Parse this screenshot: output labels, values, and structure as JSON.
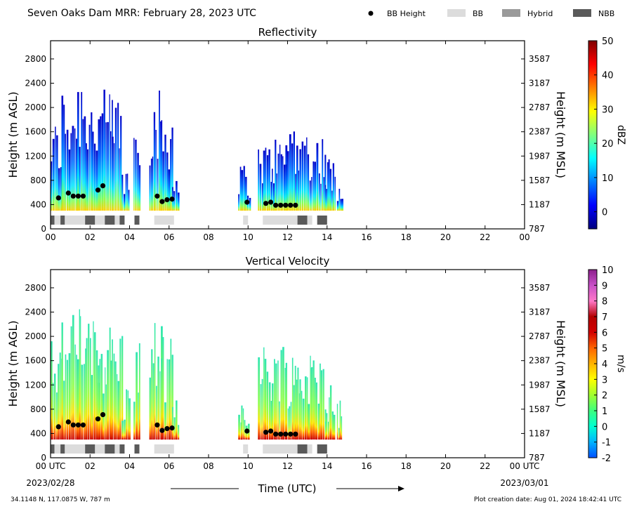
{
  "header": {
    "title": "Seven Oaks Dam MRR:  February 28, 2023 UTC",
    "legend": [
      {
        "label": "BB Height",
        "color": "#000000",
        "marker": "dot"
      },
      {
        "label": "BB",
        "color": "#dcdcdc",
        "marker": "rect"
      },
      {
        "label": "Hybrid",
        "color": "#9a9a9a",
        "marker": "rect"
      },
      {
        "label": "NBB",
        "color": "#5a5a5a",
        "marker": "rect"
      }
    ]
  },
  "footer": {
    "location": "34.1148 N, 117.0875 W, 787 m",
    "creation": "Plot creation date: Aug 01, 2024 18:42:41 UTC",
    "date_start": "2023/02/28",
    "date_end": "2023/03/01",
    "xlabel": "Time (UTC)"
  },
  "chart_data": [
    {
      "type": "heatmap",
      "title": "Reflectivity",
      "ylabel": "Height (m AGL)",
      "ylabel_right": "Height (m MSL)",
      "xlim": [
        0,
        24
      ],
      "ylim": [
        0,
        3100
      ],
      "xticks": [
        "00",
        "02",
        "04",
        "06",
        "08",
        "10",
        "12",
        "14",
        "16",
        "18",
        "20",
        "22",
        "00"
      ],
      "yticks": [
        0,
        400,
        800,
        1200,
        1600,
        2000,
        2400,
        2800
      ],
      "yticks_right": [
        "787",
        "1187",
        "1587",
        "1987",
        "2387",
        "2787",
        "3187",
        "3587"
      ],
      "colorbar": {
        "label": "dBZ",
        "ticks": [
          0,
          10,
          20,
          30,
          40,
          50
        ],
        "range": [
          -5,
          50
        ],
        "colors": [
          "#00007f",
          "#0000ff",
          "#007fff",
          "#00ffff",
          "#7fff7f",
          "#ffff00",
          "#ff7f00",
          "#ff0000",
          "#7f0000"
        ]
      },
      "echo_segments": [
        {
          "start": 0.0,
          "end": 0.55,
          "top": 1800
        },
        {
          "start": 0.55,
          "end": 1.35,
          "top": 2400
        },
        {
          "start": 1.35,
          "end": 1.8,
          "top": 2700
        },
        {
          "start": 1.8,
          "end": 2.4,
          "top": 2300
        },
        {
          "start": 2.4,
          "end": 3.1,
          "top": 2300
        },
        {
          "start": 3.1,
          "end": 3.6,
          "top": 2250
        },
        {
          "start": 3.6,
          "end": 4.0,
          "top": 1100
        },
        {
          "start": 4.2,
          "end": 4.5,
          "top": 2000
        },
        {
          "start": 5.0,
          "end": 5.6,
          "top": 2300
        },
        {
          "start": 5.6,
          "end": 6.15,
          "top": 2100
        },
        {
          "start": 6.15,
          "end": 6.5,
          "top": 1000
        },
        {
          "start": 8.75,
          "end": 8.85,
          "top": 300
        },
        {
          "start": 9.5,
          "end": 9.65,
          "top": 1050
        },
        {
          "start": 9.65,
          "end": 10.1,
          "top": 1100
        },
        {
          "start": 10.5,
          "end": 11.2,
          "top": 1450
        },
        {
          "start": 11.2,
          "end": 11.9,
          "top": 1550
        },
        {
          "start": 11.9,
          "end": 12.6,
          "top": 1900
        },
        {
          "start": 12.6,
          "end": 13.2,
          "top": 1700
        },
        {
          "start": 13.2,
          "end": 13.9,
          "top": 1600
        },
        {
          "start": 13.9,
          "end": 14.4,
          "top": 1200
        },
        {
          "start": 14.5,
          "end": 14.75,
          "top": 1000
        }
      ],
      "bb_height": [
        {
          "t": 0.4,
          "h": 510
        },
        {
          "t": 0.9,
          "h": 590
        },
        {
          "t": 1.15,
          "h": 540
        },
        {
          "t": 1.4,
          "h": 540
        },
        {
          "t": 1.65,
          "h": 540
        },
        {
          "t": 2.4,
          "h": 640
        },
        {
          "t": 2.65,
          "h": 710
        },
        {
          "t": 5.4,
          "h": 540
        },
        {
          "t": 5.65,
          "h": 450
        },
        {
          "t": 5.9,
          "h": 480
        },
        {
          "t": 6.15,
          "h": 490
        },
        {
          "t": 9.95,
          "h": 440
        },
        {
          "t": 10.9,
          "h": 420
        },
        {
          "t": 11.15,
          "h": 440
        },
        {
          "t": 11.4,
          "h": 390
        },
        {
          "t": 11.65,
          "h": 390
        },
        {
          "t": 11.9,
          "h": 390
        },
        {
          "t": 12.15,
          "h": 390
        },
        {
          "t": 12.4,
          "h": 390
        }
      ],
      "bb_type": [
        {
          "start": 0.0,
          "end": 0.2,
          "kind": "NBB"
        },
        {
          "start": 0.2,
          "end": 0.5,
          "kind": "BB"
        },
        {
          "start": 0.5,
          "end": 0.72,
          "kind": "NBB"
        },
        {
          "start": 0.72,
          "end": 1.75,
          "kind": "BB"
        },
        {
          "start": 1.75,
          "end": 2.25,
          "kind": "NBB"
        },
        {
          "start": 2.25,
          "end": 2.75,
          "kind": "BB"
        },
        {
          "start": 2.75,
          "end": 3.25,
          "kind": "NBB"
        },
        {
          "start": 3.25,
          "end": 3.5,
          "kind": "BB"
        },
        {
          "start": 3.5,
          "end": 3.75,
          "kind": "NBB"
        },
        {
          "start": 4.25,
          "end": 4.5,
          "kind": "NBB"
        },
        {
          "start": 5.25,
          "end": 6.25,
          "kind": "BB"
        },
        {
          "start": 9.75,
          "end": 10.0,
          "kind": "BB"
        },
        {
          "start": 10.75,
          "end": 12.5,
          "kind": "BB"
        },
        {
          "start": 12.5,
          "end": 13.0,
          "kind": "NBB"
        },
        {
          "start": 13.0,
          "end": 13.25,
          "kind": "BB"
        },
        {
          "start": 13.5,
          "end": 14.0,
          "kind": "NBB"
        }
      ]
    },
    {
      "type": "heatmap",
      "title": "Vertical Velocity",
      "ylabel": "Height (m AGL)",
      "ylabel_right": "Height (m MSL)",
      "xlim": [
        0,
        24
      ],
      "ylim": [
        0,
        3100
      ],
      "xticks": [
        "00 UTC",
        "02",
        "04",
        "06",
        "08",
        "10",
        "12",
        "14",
        "16",
        "18",
        "20",
        "22",
        "00 UTC"
      ],
      "yticks": [
        0,
        400,
        800,
        1200,
        1600,
        2000,
        2400,
        2800
      ],
      "yticks_right": [
        "787",
        "1187",
        "1587",
        "1987",
        "2387",
        "2787",
        "3187",
        "3587"
      ],
      "colorbar": {
        "label": "m/s",
        "ticks": [
          -2,
          -1,
          0,
          1,
          2,
          3,
          4,
          5,
          6,
          7,
          8,
          9,
          10
        ],
        "range": [
          -2,
          10
        ],
        "colors": [
          "#0050ff",
          "#00b4ff",
          "#00ffd0",
          "#3cff7f",
          "#a0ff30",
          "#ffff00",
          "#ffb400",
          "#ff6400",
          "#d20000",
          "#b40000",
          "#ff78c8",
          "#c850c8",
          "#8c1e8c"
        ]
      },
      "echo_segments": [
        {
          "start": 0.0,
          "end": 0.55,
          "top": 2150
        },
        {
          "start": 0.55,
          "end": 1.35,
          "top": 2400
        },
        {
          "start": 1.35,
          "end": 1.8,
          "top": 2700
        },
        {
          "start": 1.8,
          "end": 2.4,
          "top": 2300
        },
        {
          "start": 2.4,
          "end": 3.1,
          "top": 2300
        },
        {
          "start": 3.1,
          "end": 3.6,
          "top": 2200
        },
        {
          "start": 3.6,
          "end": 4.0,
          "top": 1200
        },
        {
          "start": 4.2,
          "end": 4.5,
          "top": 2000
        },
        {
          "start": 5.0,
          "end": 5.6,
          "top": 2300
        },
        {
          "start": 5.6,
          "end": 6.15,
          "top": 2000
        },
        {
          "start": 6.15,
          "end": 6.5,
          "top": 1000
        },
        {
          "start": 8.75,
          "end": 8.85,
          "top": 300
        },
        {
          "start": 9.5,
          "end": 9.65,
          "top": 1200
        },
        {
          "start": 9.65,
          "end": 10.1,
          "top": 1100
        },
        {
          "start": 10.5,
          "end": 11.2,
          "top": 1900
        },
        {
          "start": 11.2,
          "end": 11.9,
          "top": 2000
        },
        {
          "start": 11.9,
          "end": 12.6,
          "top": 1800
        },
        {
          "start": 12.6,
          "end": 13.2,
          "top": 1800
        },
        {
          "start": 13.2,
          "end": 13.9,
          "top": 1700
        },
        {
          "start": 13.9,
          "end": 14.4,
          "top": 1300
        },
        {
          "start": 14.5,
          "end": 14.75,
          "top": 1000
        }
      ],
      "bb_height": [
        {
          "t": 0.4,
          "h": 510
        },
        {
          "t": 0.9,
          "h": 590
        },
        {
          "t": 1.15,
          "h": 540
        },
        {
          "t": 1.4,
          "h": 540
        },
        {
          "t": 1.65,
          "h": 540
        },
        {
          "t": 2.4,
          "h": 640
        },
        {
          "t": 2.65,
          "h": 710
        },
        {
          "t": 5.4,
          "h": 540
        },
        {
          "t": 5.65,
          "h": 450
        },
        {
          "t": 5.9,
          "h": 480
        },
        {
          "t": 6.15,
          "h": 490
        },
        {
          "t": 9.95,
          "h": 440
        },
        {
          "t": 10.9,
          "h": 420
        },
        {
          "t": 11.15,
          "h": 440
        },
        {
          "t": 11.4,
          "h": 390
        },
        {
          "t": 11.65,
          "h": 390
        },
        {
          "t": 11.9,
          "h": 390
        },
        {
          "t": 12.15,
          "h": 390
        },
        {
          "t": 12.4,
          "h": 390
        }
      ],
      "bb_type": [
        {
          "start": 0.0,
          "end": 0.2,
          "kind": "NBB"
        },
        {
          "start": 0.2,
          "end": 0.5,
          "kind": "BB"
        },
        {
          "start": 0.5,
          "end": 0.72,
          "kind": "NBB"
        },
        {
          "start": 0.72,
          "end": 1.75,
          "kind": "BB"
        },
        {
          "start": 1.75,
          "end": 2.25,
          "kind": "NBB"
        },
        {
          "start": 2.25,
          "end": 2.75,
          "kind": "BB"
        },
        {
          "start": 2.75,
          "end": 3.25,
          "kind": "NBB"
        },
        {
          "start": 3.25,
          "end": 3.5,
          "kind": "BB"
        },
        {
          "start": 3.5,
          "end": 3.75,
          "kind": "NBB"
        },
        {
          "start": 4.25,
          "end": 4.5,
          "kind": "NBB"
        },
        {
          "start": 5.25,
          "end": 6.25,
          "kind": "BB"
        },
        {
          "start": 9.75,
          "end": 10.0,
          "kind": "BB"
        },
        {
          "start": 10.75,
          "end": 12.5,
          "kind": "BB"
        },
        {
          "start": 12.5,
          "end": 13.0,
          "kind": "NBB"
        },
        {
          "start": 13.0,
          "end": 13.25,
          "kind": "BB"
        },
        {
          "start": 13.5,
          "end": 14.0,
          "kind": "NBB"
        }
      ]
    }
  ]
}
